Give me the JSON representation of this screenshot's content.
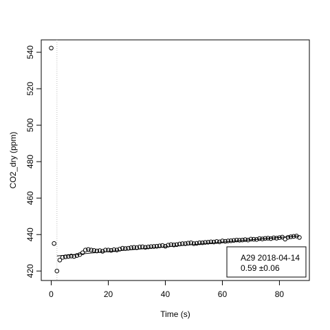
{
  "chart_data": {
    "type": "scatter",
    "title": "",
    "xlabel": "Time (s)",
    "ylabel": "CO2_dry (ppm)",
    "xlim": [
      -3.5,
      90.5
    ],
    "ylim": [
      414.8,
      546.8
    ],
    "xticks": [
      0,
      20,
      40,
      60,
      80
    ],
    "yticks": [
      420,
      440,
      460,
      480,
      500,
      520,
      540
    ],
    "grid": false,
    "legend_position": "bottom-right",
    "legend": [
      "A29 2018-04-14",
      "0.59 ±0.06"
    ],
    "series": [
      {
        "x": [
          0,
          1,
          2,
          3,
          4,
          5,
          6,
          7,
          8,
          9,
          10,
          11,
          12,
          13,
          14,
          15,
          16,
          17,
          18,
          19,
          20,
          21,
          22,
          23,
          24,
          25,
          26,
          27,
          28,
          29,
          30,
          31,
          32,
          33,
          34,
          35,
          36,
          37,
          38,
          39,
          40,
          41,
          42,
          43,
          44,
          45,
          46,
          47,
          48,
          49,
          50,
          51,
          52,
          53,
          54,
          55,
          56,
          57,
          58,
          59,
          60,
          61,
          62,
          63,
          64,
          65,
          66,
          67,
          68,
          69,
          70,
          71,
          72,
          73,
          74,
          75,
          76,
          77,
          78,
          79,
          80,
          81,
          82,
          83,
          84,
          85,
          86,
          87
        ],
        "y": [
          542.3,
          435.1,
          420.0,
          426.0,
          427.5,
          427.8,
          428.0,
          428.2,
          428.0,
          428.5,
          429.0,
          430.0,
          431.5,
          431.8,
          431.5,
          431.3,
          431.0,
          431.2,
          430.8,
          431.5,
          431.5,
          431.3,
          431.7,
          431.5,
          432.0,
          432.5,
          432.3,
          432.5,
          432.8,
          433.0,
          432.8,
          433.2,
          433.3,
          433.0,
          433.2,
          433.4,
          433.5,
          433.6,
          433.8,
          434.0,
          433.6,
          434.2,
          434.5,
          434.3,
          434.5,
          434.8,
          435.0,
          435.0,
          435.3,
          435.5,
          435.0,
          435.2,
          435.5,
          435.5,
          435.7,
          435.8,
          436.0,
          435.9,
          436.2,
          436.0,
          436.5,
          436.3,
          436.5,
          436.6,
          436.8,
          437.0,
          436.9,
          437.0,
          437.2,
          437.0,
          437.5,
          437.4,
          437.3,
          437.8,
          437.6,
          437.9,
          438.0,
          437.8,
          438.2,
          438.0,
          438.3,
          438.6,
          437.5,
          438.5,
          438.8,
          439.0,
          439.2,
          438.4
        ]
      }
    ],
    "fit": {
      "type": "line",
      "x": [
        2,
        87
      ],
      "y": [
        428.3,
        439.3
      ]
    },
    "deadband_line": {
      "x": 2
    }
  }
}
